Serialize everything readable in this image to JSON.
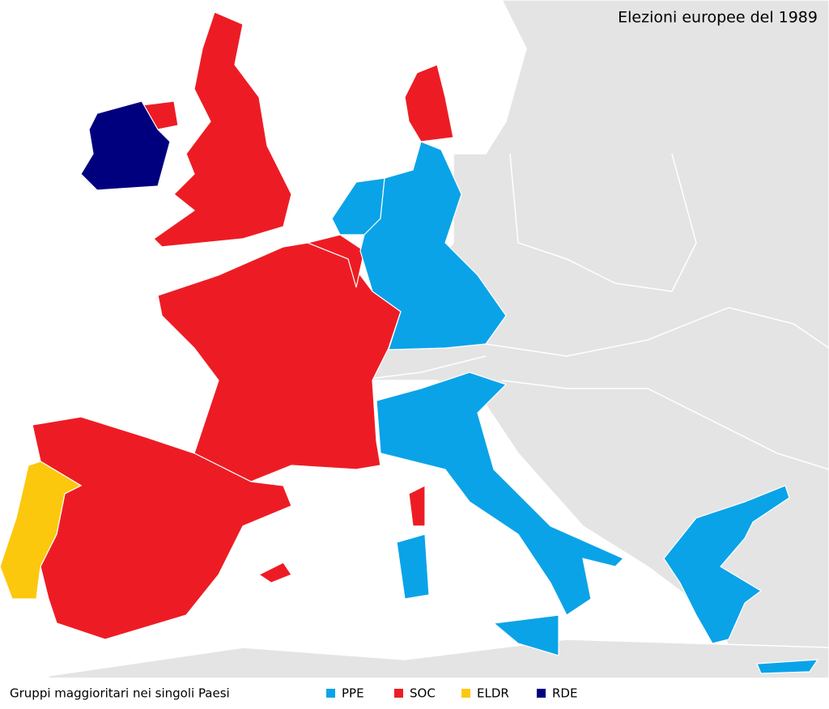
{
  "title": "Elezioni europee del 1989",
  "legend": {
    "caption": "Gruppi maggioritari nei singoli Paesi",
    "items": [
      {
        "name": "PPE",
        "color": "#0aa3e8"
      },
      {
        "name": "SOC",
        "color": "#ed1c24"
      },
      {
        "name": "ELDR",
        "color": "#fcc80e"
      },
      {
        "name": "RDE",
        "color": "#00007f"
      }
    ]
  }
}
